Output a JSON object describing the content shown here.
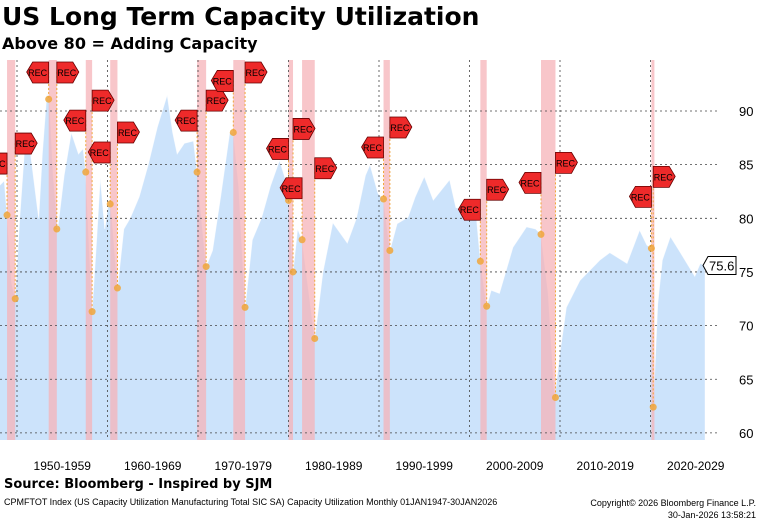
{
  "header": {
    "title": "US Long Term Capacity Utilization",
    "subtitle": "Above 80 = Adding Capacity"
  },
  "source": "Source: Bloomberg - Inspired by SJM",
  "footer": {
    "description": "CPMFTOT Index (US Capacity Utilization Manufacturing Total SIC SA) Capacity Utilization Monthly 01JAN1947-30JAN2026",
    "copyright": "Copyright© 2026 Bloomberg Finance L.P.",
    "timestamp": "30-Jan-2026 13:58:21"
  },
  "colors": {
    "area": "#cce3fb",
    "recession": "#f6b3b8",
    "flag": "#ee2a2a",
    "dot": "#f0a63a"
  },
  "chart_data": {
    "type": "area",
    "title": "US Long Term Capacity Utilization",
    "ylim": [
      59,
      97
    ],
    "xlim": [
      1948,
      2030
    ],
    "yticks": [
      60,
      65,
      70,
      75,
      80,
      85,
      90
    ],
    "xticks": [
      "1950-1959",
      "1960-1969",
      "1970-1979",
      "1980-1989",
      "1990-1999",
      "2000-2009",
      "2010-2019",
      "2020-2029"
    ],
    "last_value": "75.6",
    "marker_label": "REC",
    "series": [
      {
        "name": "CPMFTOT Index",
        "points": [
          [
            1948.0,
            83
          ],
          [
            1948.6,
            83.5
          ],
          [
            1948.9,
            80.3
          ],
          [
            1949.4,
            74
          ],
          [
            1949.8,
            72.5
          ],
          [
            1950.3,
            80
          ],
          [
            1950.8,
            86
          ],
          [
            1951.2,
            88
          ],
          [
            1951.8,
            84
          ],
          [
            1952.4,
            80
          ],
          [
            1952.8,
            86
          ],
          [
            1953.3,
            91.7
          ],
          [
            1953.6,
            90.8
          ],
          [
            1954.0,
            84
          ],
          [
            1954.5,
            79
          ],
          [
            1955.2,
            84
          ],
          [
            1956.0,
            88
          ],
          [
            1956.8,
            86
          ],
          [
            1957.3,
            86.5
          ],
          [
            1957.6,
            84.3
          ],
          [
            1958.3,
            71.3
          ],
          [
            1958.8,
            78
          ],
          [
            1959.2,
            83.8
          ],
          [
            1959.7,
            79
          ],
          [
            1960.2,
            82
          ],
          [
            1960.5,
            80
          ],
          [
            1961.1,
            73.5
          ],
          [
            1961.8,
            79
          ],
          [
            1962.5,
            80
          ],
          [
            1963.5,
            82
          ],
          [
            1964.5,
            85
          ],
          [
            1965.5,
            88.5
          ],
          [
            1966.6,
            91.5
          ],
          [
            1967.2,
            88
          ],
          [
            1967.7,
            86
          ],
          [
            1968.5,
            87
          ],
          [
            1969.5,
            87.2
          ],
          [
            1969.9,
            84.3
          ],
          [
            1970.5,
            79
          ],
          [
            1970.9,
            75.5
          ],
          [
            1971.6,
            77
          ],
          [
            1972.5,
            82
          ],
          [
            1973.5,
            88
          ],
          [
            1973.9,
            88
          ],
          [
            1974.5,
            83
          ],
          [
            1975.2,
            71.7
          ],
          [
            1976.0,
            78
          ],
          [
            1977.0,
            80
          ],
          [
            1978.0,
            83
          ],
          [
            1979.0,
            85.4
          ],
          [
            1979.9,
            83
          ],
          [
            1980.5,
            75
          ],
          [
            1981.0,
            79
          ],
          [
            1981.5,
            78
          ],
          [
            1982.9,
            68.8
          ],
          [
            1983.8,
            75
          ],
          [
            1984.9,
            79.6
          ],
          [
            1986.5,
            77.7
          ],
          [
            1987.5,
            80
          ],
          [
            1988.5,
            84
          ],
          [
            1989.0,
            85
          ],
          [
            1989.9,
            82.3
          ],
          [
            1990.5,
            81.8
          ],
          [
            1991.2,
            77
          ],
          [
            1992.0,
            79.5
          ],
          [
            1993.2,
            80.1
          ],
          [
            1994.0,
            82
          ],
          [
            1995.0,
            83.9
          ],
          [
            1996.0,
            81.7
          ],
          [
            1997.8,
            83.6
          ],
          [
            1998.5,
            81
          ],
          [
            1999.5,
            80.8
          ],
          [
            2000.2,
            81
          ],
          [
            2000.8,
            79.8
          ],
          [
            2001.2,
            76
          ],
          [
            2001.9,
            71.8
          ],
          [
            2002.4,
            73.3
          ],
          [
            2003.3,
            73
          ],
          [
            2004.8,
            77.3
          ],
          [
            2006.3,
            79.2
          ],
          [
            2007.3,
            79
          ],
          [
            2007.9,
            78.5
          ],
          [
            2008.7,
            73
          ],
          [
            2009.4,
            63.3
          ],
          [
            2010.0,
            67.5
          ],
          [
            2010.7,
            71.7
          ],
          [
            2012.2,
            74.2
          ],
          [
            2014.4,
            76.1
          ],
          [
            2015.5,
            76.8
          ],
          [
            2017.4,
            75.8
          ],
          [
            2018.8,
            78.9
          ],
          [
            2019.6,
            77.5
          ],
          [
            2020.1,
            77.2
          ],
          [
            2020.3,
            62.4
          ],
          [
            2020.8,
            72
          ],
          [
            2021.3,
            76.1
          ],
          [
            2022.2,
            78.3
          ],
          [
            2023.3,
            76.8
          ],
          [
            2024.9,
            74.6
          ],
          [
            2025.5,
            75.8
          ],
          [
            2026.0,
            75.6
          ]
        ]
      }
    ],
    "recessions": [
      [
        1948.9,
        1949.8
      ],
      [
        1953.5,
        1954.4
      ],
      [
        1957.6,
        1958.3
      ],
      [
        1960.3,
        1961.1
      ],
      [
        1969.9,
        1970.9
      ],
      [
        1973.9,
        1975.2
      ],
      [
        1980.0,
        1980.5
      ],
      [
        1981.5,
        1982.9
      ],
      [
        1990.5,
        1991.2
      ],
      [
        2001.2,
        2001.9
      ],
      [
        2007.9,
        2009.5
      ],
      [
        2020.1,
        2020.3
      ]
    ]
  }
}
